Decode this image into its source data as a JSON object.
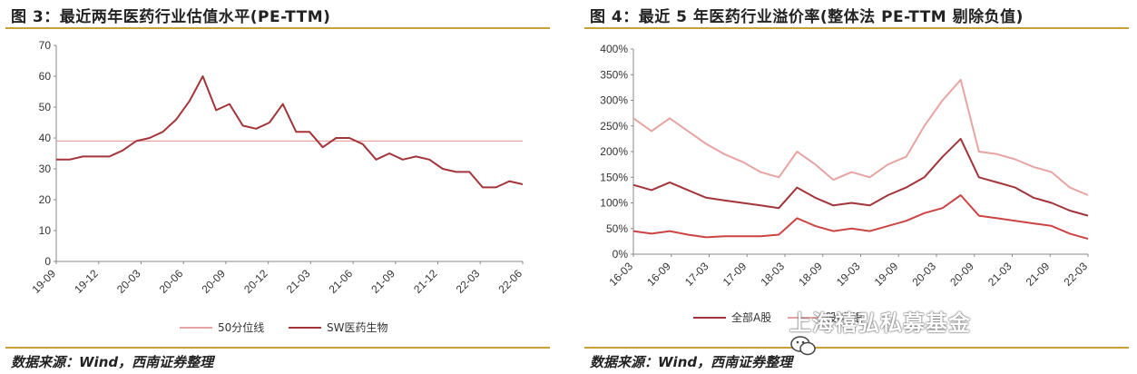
{
  "left": {
    "title": "图 3：最近两年医药行业估值水平(PE-TTM)",
    "source": "数据来源：Wind，西南证券整理",
    "chart_data": {
      "type": "line",
      "title": "图 3：最近两年医药行业估值水平(PE-TTM)",
      "xlabel": "",
      "ylabel": "",
      "ylim": [
        0,
        70
      ],
      "yticks": [
        "0",
        "10",
        "20",
        "30",
        "40",
        "50",
        "60",
        "70"
      ],
      "xticks": [
        "19-09",
        "19-12",
        "20-03",
        "20-06",
        "20-09",
        "20-12",
        "21-03",
        "21-06",
        "21-09",
        "21-12",
        "22-03",
        "22-06"
      ],
      "x": [
        "19-09",
        "19-10",
        "19-11",
        "19-12",
        "20-01",
        "20-02",
        "20-03",
        "20-04",
        "20-05",
        "20-06",
        "20-07",
        "20-08",
        "20-09",
        "20-10",
        "20-11",
        "20-12",
        "21-01",
        "21-02",
        "21-03",
        "21-04",
        "21-05",
        "21-06",
        "21-07",
        "21-08",
        "21-09",
        "21-10",
        "21-11",
        "21-12",
        "22-01",
        "22-02",
        "22-03",
        "22-04",
        "22-05",
        "22-06",
        "22-07",
        "22-08"
      ],
      "series": [
        {
          "name": "50分位线",
          "color": "#e8a3a3",
          "values": [
            39,
            39,
            39,
            39,
            39,
            39,
            39,
            39,
            39,
            39,
            39,
            39,
            39,
            39,
            39,
            39,
            39,
            39,
            39,
            39,
            39,
            39,
            39,
            39,
            39,
            39,
            39,
            39,
            39,
            39,
            39,
            39,
            39,
            39,
            39,
            39
          ]
        },
        {
          "name": "SW医药生物",
          "color": "#a3343a",
          "values": [
            33,
            33,
            34,
            34,
            34,
            36,
            39,
            40,
            42,
            46,
            52,
            60,
            49,
            51,
            44,
            43,
            45,
            51,
            42,
            42,
            37,
            40,
            40,
            38,
            33,
            35,
            33,
            34,
            33,
            30,
            29,
            29,
            24,
            24,
            26,
            25
          ]
        }
      ],
      "legend": "bottom"
    }
  },
  "right": {
    "title": "图 4：最近 5 年医药行业溢价率(整体法 PE-TTM 剔除负值)",
    "source": "数据来源：Wind，西南证券整理",
    "chart_data": {
      "type": "line",
      "title": "图 4：最近 5 年医药行业溢价率(整体法 PE-TTM 剔除负值)",
      "xlabel": "",
      "ylabel": "",
      "ylim": [
        0,
        400
      ],
      "yticks": [
        "0%",
        "50%",
        "100%",
        "150%",
        "200%",
        "250%",
        "300%",
        "350%",
        "400%"
      ],
      "xticks": [
        "16-03",
        "16-09",
        "17-03",
        "17-09",
        "18-03",
        "18-09",
        "19-03",
        "19-09",
        "20-03",
        "20-09",
        "21-03",
        "21-09",
        "22-03"
      ],
      "x": [
        "16-03",
        "16-06",
        "16-09",
        "16-12",
        "17-03",
        "17-06",
        "17-09",
        "17-12",
        "18-03",
        "18-06",
        "18-09",
        "18-12",
        "19-03",
        "19-06",
        "19-09",
        "19-12",
        "20-03",
        "20-06",
        "20-09",
        "20-12",
        "21-03",
        "21-06",
        "21-09",
        "21-12",
        "22-03",
        "22-06"
      ],
      "series": [
        {
          "name": "全部A股",
          "color": "#a3343a",
          "values": [
            135,
            125,
            140,
            125,
            110,
            105,
            100,
            95,
            90,
            130,
            110,
            95,
            100,
            95,
            115,
            130,
            150,
            190,
            225,
            150,
            140,
            130,
            110,
            100,
            85,
            75
          ]
        },
        {
          "name": "股(非银",
          "color": "#e8a3a3",
          "values": [
            265,
            240,
            265,
            240,
            215,
            195,
            180,
            160,
            150,
            200,
            175,
            145,
            160,
            150,
            175,
            190,
            250,
            300,
            340,
            200,
            195,
            185,
            170,
            160,
            130,
            115
          ]
        },
        {
          "name": "",
          "color": "#cc4444",
          "values": [
            45,
            40,
            45,
            38,
            33,
            35,
            35,
            35,
            38,
            70,
            55,
            45,
            50,
            45,
            55,
            65,
            80,
            90,
            115,
            75,
            70,
            65,
            60,
            55,
            40,
            30
          ]
        }
      ],
      "legend": "bottom"
    },
    "watermark": "上海禧弘私募基金"
  }
}
